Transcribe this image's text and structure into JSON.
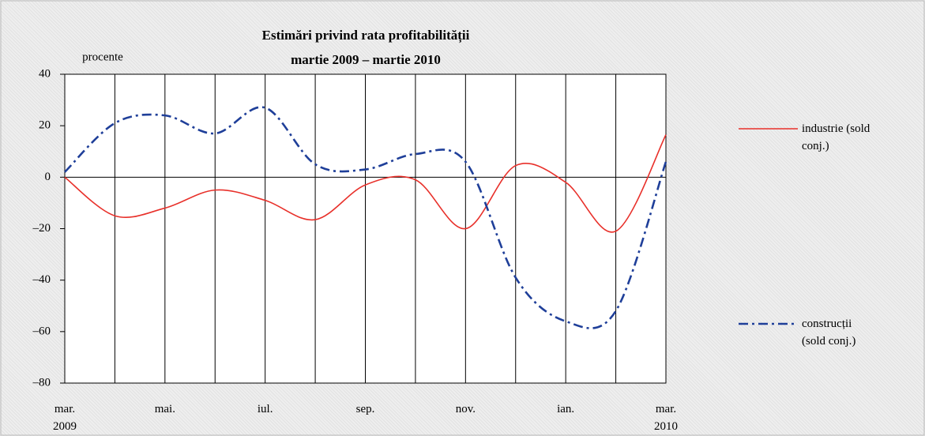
{
  "chart_data": {
    "type": "line",
    "title": "Estimări privind rata profitabilității",
    "subtitle": "martie 2009 – martie 2010",
    "y_label": "procente",
    "categories": [
      "mar. 2009",
      null,
      "mai.",
      null,
      "iul.",
      null,
      "sep.",
      null,
      "nov.",
      null,
      "ian.",
      null,
      "mar. 2010"
    ],
    "series": [
      {
        "name": "industrie (sold conj.)",
        "color": "#e8302a",
        "values": [
          0,
          -15,
          -12,
          -5,
          -9,
          -16.5,
          -3,
          -1,
          -20,
          4.5,
          -2,
          -21,
          16.5
        ]
      },
      {
        "name": "construcții (sold conj.)",
        "color": "#1f3f99",
        "values": [
          2,
          21,
          24,
          17,
          27,
          5,
          3,
          9,
          6,
          -39,
          -56,
          -52,
          6
        ]
      }
    ],
    "ylim": [
      -80,
      40
    ],
    "yticks": [
      {
        "value": -80,
        "label": "–80"
      },
      {
        "value": -60,
        "label": "–60"
      },
      {
        "value": -40,
        "label": "–40"
      },
      {
        "value": -20,
        "label": "–20"
      },
      0,
      20,
      40
    ],
    "grid": true
  }
}
